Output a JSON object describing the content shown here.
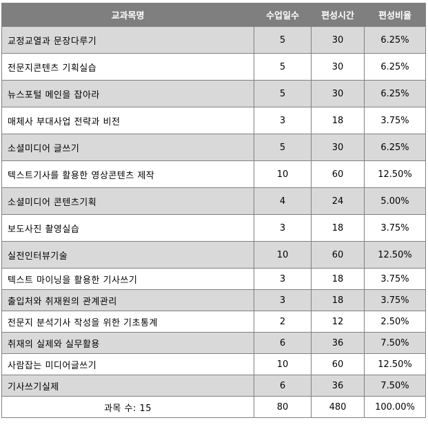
{
  "table": {
    "headers": [
      "교과목명",
      "수업일수",
      "편성시간",
      "편성비율"
    ],
    "rows": [
      {
        "name": "교정교열과 문장다루기",
        "days": "5",
        "hours": "30",
        "ratio": "6.25%",
        "shade": true
      },
      {
        "name": "전문지콘텐츠 기획실습",
        "days": "5",
        "hours": "30",
        "ratio": "6.25%",
        "shade": false
      },
      {
        "name": "뉴스포털 메인을 잡아라",
        "days": "5",
        "hours": "30",
        "ratio": "6.25%",
        "shade": true
      },
      {
        "name": "매체사 부대사업 전략과 비전",
        "days": "3",
        "hours": "18",
        "ratio": "3.75%",
        "shade": false
      },
      {
        "name": "소셜미디어 글쓰기",
        "days": "5",
        "hours": "30",
        "ratio": "6.25%",
        "shade": true
      },
      {
        "name": "텍스트기사를 활용한 영상콘텐츠 제작",
        "days": "10",
        "hours": "60",
        "ratio": "12.50%",
        "shade": false
      },
      {
        "name": "소셜미디어 콘텐츠기획",
        "days": "4",
        "hours": "24",
        "ratio": "5.00%",
        "shade": true
      },
      {
        "name": "보도사진 촬영실습",
        "days": "3",
        "hours": "18",
        "ratio": "3.75%",
        "shade": false
      },
      {
        "name": "실전인터뷰기술",
        "days": "10",
        "hours": "60",
        "ratio": "12.50%",
        "shade": true
      },
      {
        "name": "텍스트 마이닝을 활용한 기사쓰기",
        "days": "3",
        "hours": "18",
        "ratio": "3.75%",
        "shade": false
      },
      {
        "name": "출입처와 취재원의 관계관리",
        "days": "3",
        "hours": "18",
        "ratio": "3.75%",
        "shade": true
      },
      {
        "name": "전문지 분석기사 작성을 위한 기초통계",
        "days": "2",
        "hours": "12",
        "ratio": "2.50%",
        "shade": false
      },
      {
        "name": "취재의 실제와 실무활용",
        "days": "6",
        "hours": "36",
        "ratio": "7.50%",
        "shade": true
      },
      {
        "name": "사람잡는 미디어글쓰기",
        "days": "10",
        "hours": "60",
        "ratio": "12.50%",
        "shade": false
      },
      {
        "name": "기사쓰기실제",
        "days": "6",
        "hours": "36",
        "ratio": "7.50%",
        "shade": true
      }
    ],
    "total": {
      "label": "과목 수: 15",
      "days": "80",
      "hours": "480",
      "ratio": "100.00%"
    }
  },
  "colors": {
    "header_bg": "#7f7f7f",
    "header_text": "#ffffff",
    "shade_row": "#d9d9d9",
    "border": "#7f7f7f"
  }
}
